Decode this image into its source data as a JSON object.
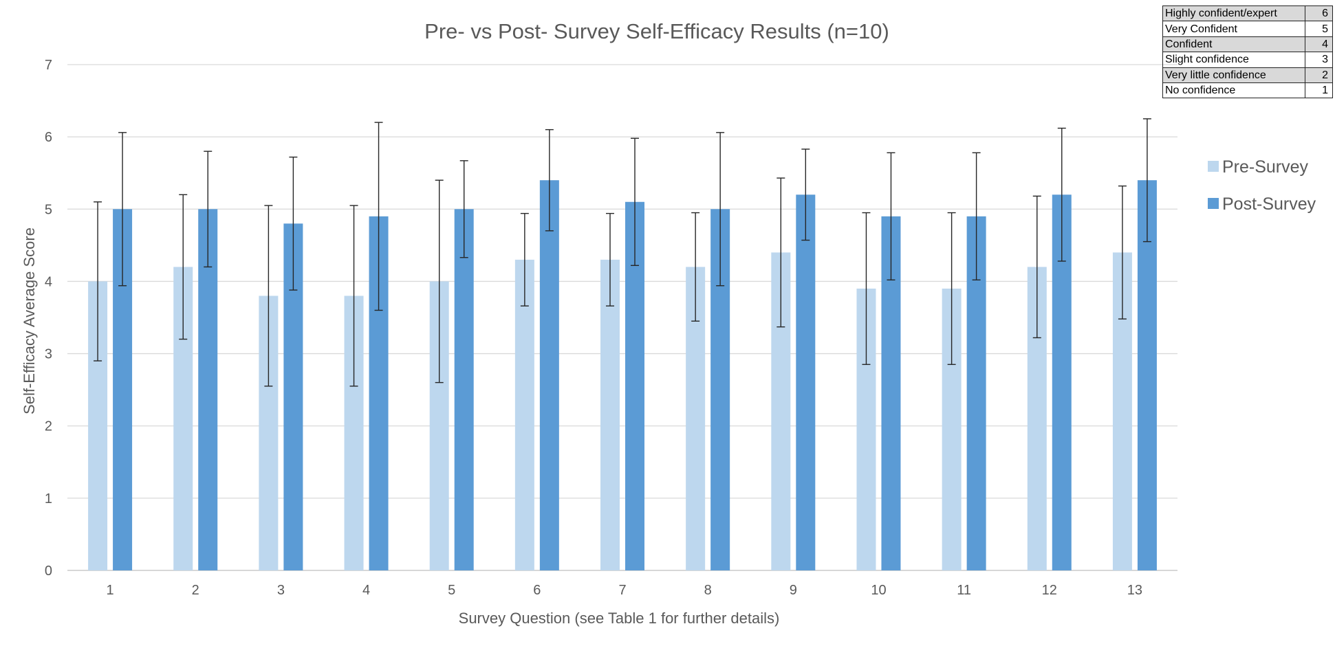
{
  "chart_data": {
    "type": "bar",
    "title": "Pre- vs Post- Survey Self-Efficacy Results (n=10)",
    "xlabel": "Survey Question (see Table 1 for further details)",
    "ylabel": "Self-Efficacy Average Score",
    "ylim": [
      0,
      7
    ],
    "yticks": [
      "0",
      "1",
      "2",
      "3",
      "4",
      "5",
      "6",
      "7"
    ],
    "grid": true,
    "legend_position": "right",
    "categories": [
      "1",
      "2",
      "3",
      "4",
      "5",
      "6",
      "7",
      "8",
      "9",
      "10",
      "11",
      "12",
      "13"
    ],
    "series": [
      {
        "name": "Pre-Survey",
        "color": "#bdd7ee",
        "values": [
          4.0,
          4.2,
          3.8,
          3.8,
          4.0,
          4.3,
          4.3,
          4.2,
          4.4,
          3.9,
          3.9,
          4.2,
          4.4
        ],
        "error": [
          1.1,
          1.0,
          1.25,
          1.25,
          1.4,
          0.64,
          0.64,
          0.75,
          1.03,
          1.05,
          1.05,
          0.98,
          0.92
        ]
      },
      {
        "name": "Post-Survey",
        "color": "#5b9bd5",
        "values": [
          5.0,
          5.0,
          4.8,
          4.9,
          5.0,
          5.4,
          5.1,
          5.0,
          5.2,
          4.9,
          4.9,
          5.2,
          5.4
        ],
        "error": [
          1.06,
          0.8,
          0.92,
          1.3,
          0.67,
          0.7,
          0.88,
          1.06,
          0.63,
          0.88,
          0.88,
          0.92,
          0.85
        ]
      }
    ]
  },
  "scale_table": [
    {
      "label": "Highly confident/expert",
      "value": "6"
    },
    {
      "label": "Very Confident",
      "value": "5"
    },
    {
      "label": "Confident",
      "value": "4"
    },
    {
      "label": "Slight confidence",
      "value": "3"
    },
    {
      "label": "Very little confidence",
      "value": "2"
    },
    {
      "label": "No confidence",
      "value": "1"
    }
  ]
}
